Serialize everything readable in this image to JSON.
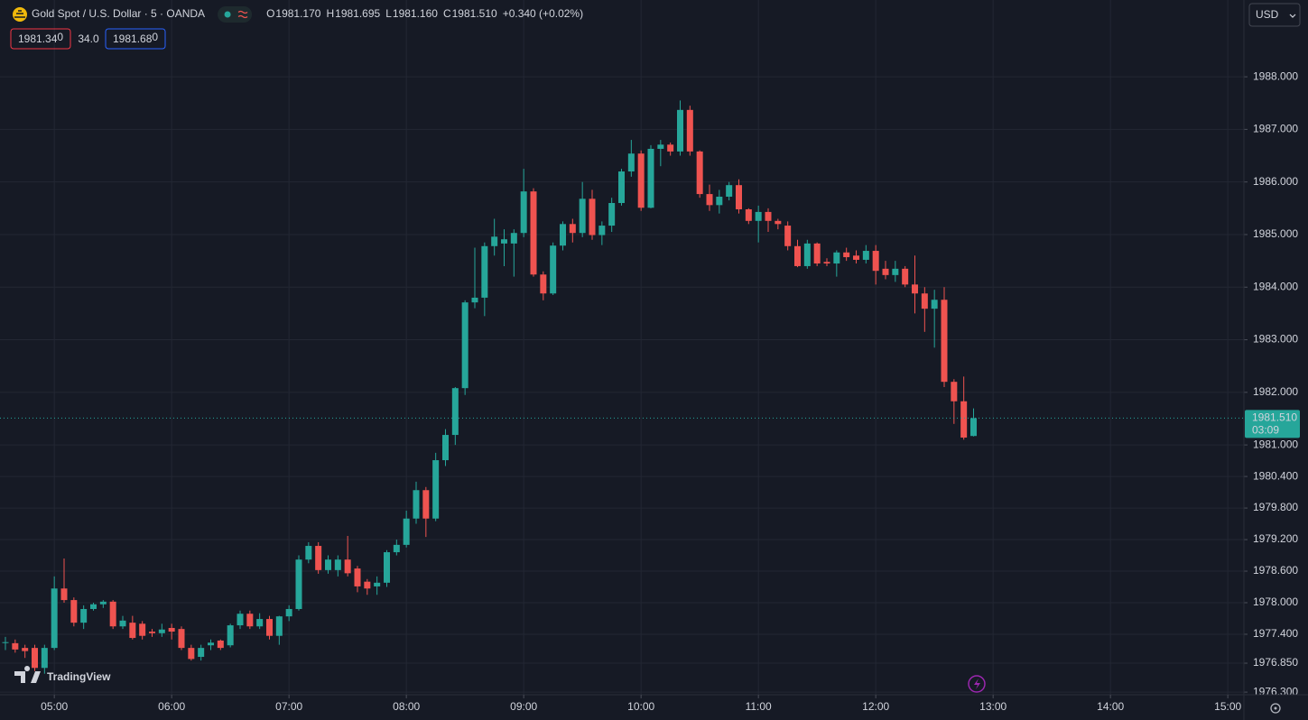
{
  "chart_data": {
    "type": "candlestick",
    "title": "Gold Spot / U.S. Dollar · 5 · OANDA",
    "legend": [
      {
        "key": "O",
        "value": "1981.170"
      },
      {
        "key": "H",
        "value": "1981.695"
      },
      {
        "key": "L",
        "value": "1981.160"
      },
      {
        "key": "C",
        "value": "1981.510"
      }
    ],
    "change": "+0.340 (+0.02%)",
    "bid": {
      "main": "1981.34",
      "pip": "0"
    },
    "spread": "34.0",
    "ask": {
      "main": "1981.68",
      "pip": "0"
    },
    "currency": "USD",
    "last_price_label": "1981.510",
    "countdown": "03:09",
    "brand": "TradingView",
    "up_color": "#26a69a",
    "down_color": "#ef5350",
    "grid": true,
    "x": [
      "04:35",
      "04:40",
      "04:45",
      "04:50",
      "04:55",
      "05:00",
      "05:05",
      "05:10",
      "05:15",
      "05:20",
      "05:25",
      "05:30",
      "05:35",
      "05:40",
      "05:45",
      "05:50",
      "05:55",
      "06:00",
      "06:05",
      "06:10",
      "06:15",
      "06:20",
      "06:25",
      "06:30",
      "06:35",
      "06:40",
      "06:45",
      "06:50",
      "06:55",
      "07:00",
      "07:05",
      "07:10",
      "07:15",
      "07:20",
      "07:25",
      "07:30",
      "07:35",
      "07:40",
      "07:45",
      "07:50",
      "07:55",
      "08:00",
      "08:05",
      "08:10",
      "08:15",
      "08:20",
      "08:25",
      "08:30",
      "08:35",
      "08:40",
      "08:45",
      "08:50",
      "08:55",
      "09:00",
      "09:05",
      "09:10",
      "09:15",
      "09:20",
      "09:25",
      "09:30",
      "09:35",
      "09:40",
      "09:45",
      "09:50",
      "09:55",
      "10:00",
      "10:05",
      "10:10",
      "10:15",
      "10:20",
      "10:25",
      "10:30",
      "10:35",
      "10:40",
      "10:45",
      "10:50",
      "10:55",
      "11:00",
      "11:05",
      "11:10",
      "11:15",
      "11:20",
      "11:25",
      "11:30",
      "11:35",
      "11:40",
      "11:45",
      "11:50",
      "11:55",
      "12:00",
      "12:05",
      "12:10",
      "12:15",
      "12:20",
      "12:25",
      "12:30",
      "12:35",
      "12:40",
      "12:45",
      "12:50"
    ],
    "open": [
      1977.25,
      1977.23,
      1977.14,
      1977.14,
      1976.76,
      1977.14,
      1978.27,
      1978.05,
      1977.62,
      1977.88,
      1977.97,
      1978.02,
      1977.55,
      1977.62,
      1977.6,
      1977.45,
      1977.42,
      1977.52,
      1977.5,
      1977.14,
      1976.97,
      1977.19,
      1977.28,
      1977.19,
      1977.57,
      1977.79,
      1977.55,
      1977.69,
      1977.37,
      1977.74,
      1977.88,
      1978.82,
      1979.08,
      1978.62,
      1978.62,
      1978.82,
      1978.65,
      1978.4,
      1978.31,
      1978.38,
      1978.96,
      1979.1,
      1979.6,
      1980.14,
      1979.6,
      1980.71,
      1981.19,
      1982.08,
      1983.71,
      1983.8,
      1984.78,
      1984.83,
      1984.83,
      1985.03,
      1985.82,
      1984.24,
      1983.88,
      1984.79,
      1985.2,
      1985.03,
      1985.68,
      1984.99,
      1985.17,
      1985.6,
      1986.2,
      1986.54,
      1985.51,
      1986.63,
      1986.71,
      1986.58,
      1987.37,
      1986.58,
      1985.77,
      1985.56,
      1985.72,
      1985.94,
      1985.48,
      1985.26,
      1985.43,
      1985.26,
      1985.17,
      1984.78,
      1984.4,
      1984.83,
      1984.48,
      1984.45,
      1984.66,
      1984.6,
      1984.52,
      1984.69,
      1984.35,
      1984.23,
      1984.35,
      1984.05,
      1983.88,
      1983.59,
      1983.76,
      1982.2,
      1981.83,
      1981.17
    ],
    "high": [
      1977.35,
      1977.3,
      1977.2,
      1977.2,
      1977.2,
      1978.5,
      1978.84,
      1978.1,
      1977.95,
      1978.0,
      1978.05,
      1978.05,
      1977.75,
      1977.75,
      1977.65,
      1977.5,
      1977.6,
      1977.6,
      1977.55,
      1977.2,
      1977.2,
      1977.3,
      1977.3,
      1977.6,
      1977.85,
      1977.85,
      1977.8,
      1977.75,
      1977.75,
      1977.95,
      1978.9,
      1979.15,
      1979.15,
      1978.9,
      1978.9,
      1979.27,
      1978.7,
      1978.45,
      1978.5,
      1979.0,
      1979.2,
      1979.75,
      1980.3,
      1980.2,
      1980.85,
      1981.3,
      1982.1,
      1983.75,
      1984.75,
      1984.85,
      1985.3,
      1985.1,
      1985.1,
      1986.25,
      1985.88,
      1984.3,
      1984.85,
      1985.25,
      1985.3,
      1986.0,
      1985.85,
      1985.25,
      1985.7,
      1986.25,
      1986.8,
      1986.6,
      1986.7,
      1986.8,
      1986.75,
      1987.55,
      1987.45,
      1986.6,
      1985.95,
      1985.85,
      1986.0,
      1986.05,
      1985.5,
      1985.55,
      1985.5,
      1985.3,
      1985.25,
      1984.9,
      1984.9,
      1984.85,
      1984.55,
      1984.7,
      1984.75,
      1984.7,
      1984.8,
      1984.8,
      1984.5,
      1984.5,
      1984.4,
      1984.6,
      1984.0,
      1983.95,
      1984.0,
      1982.25,
      1982.3,
      1981.695
    ],
    "low": [
      1977.1,
      1977.05,
      1976.95,
      1976.7,
      1976.65,
      1977.1,
      1978.0,
      1977.55,
      1977.5,
      1977.85,
      1977.9,
      1977.5,
      1977.5,
      1977.3,
      1977.3,
      1977.35,
      1977.35,
      1977.3,
      1977.1,
      1976.9,
      1976.9,
      1977.1,
      1977.1,
      1977.15,
      1977.5,
      1977.5,
      1977.5,
      1977.3,
      1977.2,
      1977.65,
      1977.85,
      1978.75,
      1978.55,
      1978.55,
      1978.5,
      1978.5,
      1978.2,
      1978.15,
      1978.15,
      1978.3,
      1978.9,
      1979.05,
      1979.5,
      1979.25,
      1979.55,
      1980.6,
      1981.0,
      1981.95,
      1983.6,
      1983.45,
      1984.6,
      1984.4,
      1984.2,
      1984.95,
      1984.2,
      1983.75,
      1983.85,
      1984.7,
      1984.85,
      1984.95,
      1984.9,
      1984.8,
      1985.05,
      1985.55,
      1986.1,
      1985.45,
      1985.5,
      1986.3,
      1986.5,
      1986.5,
      1986.5,
      1985.7,
      1985.45,
      1985.4,
      1985.65,
      1985.4,
      1985.2,
      1984.85,
      1985.05,
      1985.1,
      1984.7,
      1984.38,
      1984.35,
      1984.4,
      1984.4,
      1984.2,
      1984.5,
      1984.45,
      1984.45,
      1984.05,
      1984.15,
      1984.1,
      1984.0,
      1983.5,
      1983.15,
      1982.85,
      1982.1,
      1981.4,
      1981.1,
      1981.16
    ],
    "close": [
      1977.25,
      1977.11,
      1977.08,
      1976.76,
      1977.14,
      1978.27,
      1978.05,
      1977.62,
      1977.88,
      1977.97,
      1978.02,
      1977.55,
      1977.66,
      1977.33,
      1977.37,
      1977.42,
      1977.49,
      1977.45,
      1977.14,
      1976.93,
      1977.14,
      1977.24,
      1977.14,
      1977.57,
      1977.79,
      1977.55,
      1977.69,
      1977.37,
      1977.74,
      1977.88,
      1978.82,
      1979.08,
      1978.62,
      1978.82,
      1978.82,
      1978.56,
      1978.31,
      1978.27,
      1978.38,
      1978.96,
      1979.1,
      1979.6,
      1980.14,
      1979.6,
      1980.71,
      1981.19,
      1982.08,
      1983.71,
      1983.8,
      1984.78,
      1984.96,
      1984.91,
      1985.03,
      1985.82,
      1984.24,
      1983.88,
      1984.79,
      1985.2,
      1985.03,
      1985.68,
      1984.99,
      1985.17,
      1985.6,
      1986.2,
      1986.54,
      1985.51,
      1986.63,
      1986.71,
      1986.58,
      1987.37,
      1986.58,
      1985.77,
      1985.56,
      1985.72,
      1985.94,
      1985.48,
      1985.26,
      1985.43,
      1985.26,
      1985.2,
      1984.78,
      1984.4,
      1984.83,
      1984.45,
      1984.45,
      1984.66,
      1984.57,
      1984.52,
      1984.69,
      1984.31,
      1984.23,
      1984.35,
      1984.05,
      1983.88,
      1983.59,
      1983.76,
      1982.2,
      1981.83,
      1981.14,
      1981.51
    ],
    "ylim": [
      1976.25,
      1989.46
    ],
    "yticks": [
      {
        "value": 1988,
        "label": "1988.000"
      },
      {
        "value": 1987,
        "label": "1987.000"
      },
      {
        "value": 1986,
        "label": "1986.000"
      },
      {
        "value": 1985,
        "label": "1985.000"
      },
      {
        "value": 1984,
        "label": "1984.000"
      },
      {
        "value": 1983,
        "label": "1983.000"
      },
      {
        "value": 1982,
        "label": "1982.000"
      },
      {
        "value": 1981,
        "label": "1981.000"
      },
      {
        "value": 1980.4,
        "label": "1980.400"
      },
      {
        "value": 1979.8,
        "label": "1979.800"
      },
      {
        "value": 1979.2,
        "label": "1979.200"
      },
      {
        "value": 1978.6,
        "label": "1978.600"
      },
      {
        "value": 1978,
        "label": "1978.000"
      },
      {
        "value": 1977.4,
        "label": "1977.400"
      },
      {
        "value": 1976.85,
        "label": "1976.850"
      },
      {
        "value": 1976.3,
        "label": "1976.300"
      }
    ],
    "xticks": [
      "05:00",
      "06:00",
      "07:00",
      "08:00",
      "09:00",
      "10:00",
      "11:00",
      "12:00",
      "13:00",
      "14:00",
      "15:00"
    ]
  }
}
